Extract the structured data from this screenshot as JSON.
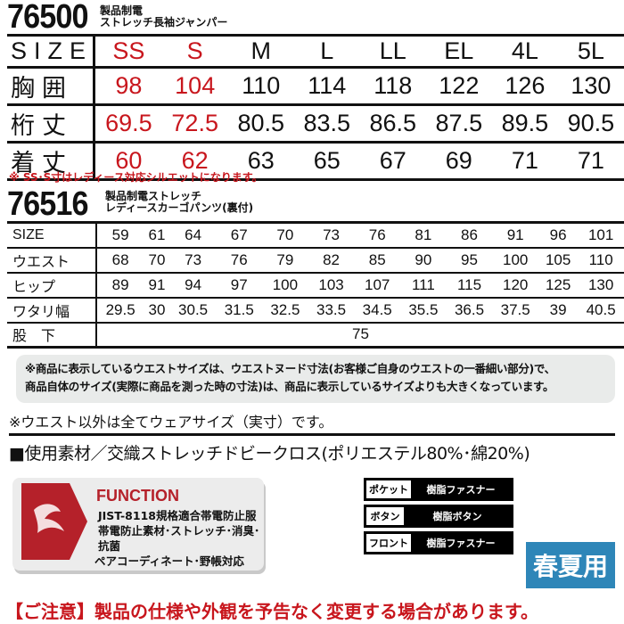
{
  "jacket": {
    "code": "76500",
    "name1": "製品制電",
    "name2": "ストレッチ長袖ジャンパー",
    "rows": [
      {
        "label": "SIZE",
        "values": [
          "SS",
          "S",
          "M",
          "L",
          "LL",
          "EL",
          "4L",
          "5L"
        ]
      },
      {
        "label": "胸囲",
        "values": [
          "98",
          "104",
          "110",
          "114",
          "118",
          "122",
          "126",
          "130"
        ]
      },
      {
        "label": "桁丈",
        "values": [
          "69.5",
          "72.5",
          "80.5",
          "83.5",
          "86.5",
          "87.5",
          "89.5",
          "90.5"
        ]
      },
      {
        "label": "着丈",
        "values": [
          "60",
          "62",
          "63",
          "65",
          "67",
          "69",
          "71",
          "71"
        ]
      }
    ],
    "note": "※ SS･S寸はレディース対応シルエットになります。"
  },
  "pants": {
    "code": "76516",
    "name1": "製品制電ストレッチ",
    "name2": "レディースカーゴパンツ(裏付)",
    "rows": [
      {
        "label": "SIZE",
        "values": [
          "59",
          "61",
          "64",
          "67",
          "70",
          "73",
          "76",
          "81",
          "86",
          "91",
          "96",
          "101"
        ]
      },
      {
        "label": "ウエスト",
        "values": [
          "68",
          "70",
          "73",
          "76",
          "79",
          "82",
          "85",
          "90",
          "95",
          "100",
          "105",
          "110"
        ]
      },
      {
        "label": "ヒップ",
        "values": [
          "89",
          "91",
          "94",
          "97",
          "100",
          "103",
          "107",
          "111",
          "115",
          "120",
          "125",
          "130"
        ]
      },
      {
        "label": "ワタリ幅",
        "values": [
          "29.5",
          "30",
          "30.5",
          "31.5",
          "32.5",
          "33.5",
          "34.5",
          "35.5",
          "36.5",
          "37.5",
          "39",
          "40.5"
        ]
      },
      {
        "label": "股　下",
        "values": [
          "75"
        ]
      }
    ]
  },
  "waist_note": [
    "※商品に表示しているウエストサイズは、ウエストヌード寸法(お客様ご自身のウエストの一番細い部分)で、",
    "商品自体のサイズ(実際に商品を測った時の寸法)は、商品に表示しているサイズよりも大きくなっています。"
  ],
  "wear_note": "※ウエスト以外は全てウェアサイズ（実寸）です。",
  "material": "■使用素材／交織ストレッチドビークロス(ポリエステル80%･綿20%)",
  "function": {
    "title": "FUNCTION",
    "lines": [
      "JIST-8118規格適合帯電防止服",
      "帯電防止素材･ストレッチ･消臭･抗菌",
      "ペアコーディネート･野帳対応"
    ],
    "icon": "dragon-logo"
  },
  "specs": [
    {
      "k": "ポケット",
      "v": "樹脂ファスナー"
    },
    {
      "k": "ボタン",
      "v": "樹脂ボタン"
    },
    {
      "k": "フロント",
      "v": "樹脂ファスナー"
    }
  ],
  "season": "春夏用",
  "caution": "【ご注意】製品の仕様や外観を予告なく変更する場合があります。",
  "colors": {
    "red": "#c8161d",
    "season_bg": "#2e86b8",
    "function_red": "#b5212a"
  }
}
